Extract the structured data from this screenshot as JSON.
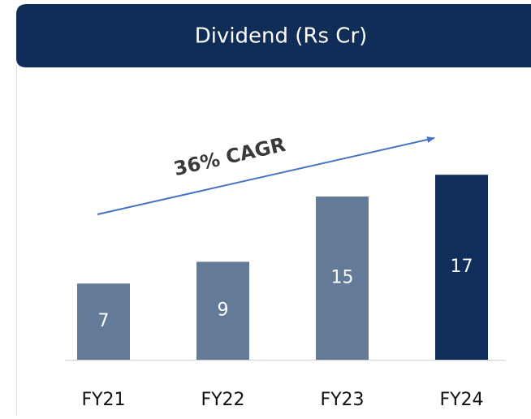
{
  "chart_data": {
    "type": "bar",
    "title": "Dividend (Rs Cr)",
    "categories": [
      "FY21",
      "FY22",
      "FY23",
      "FY24"
    ],
    "values": [
      7,
      9,
      15,
      17
    ],
    "colors": [
      "#637a99",
      "#637a99",
      "#637a99",
      "#0f2e5c"
    ],
    "annotation": "36% CAGR"
  }
}
